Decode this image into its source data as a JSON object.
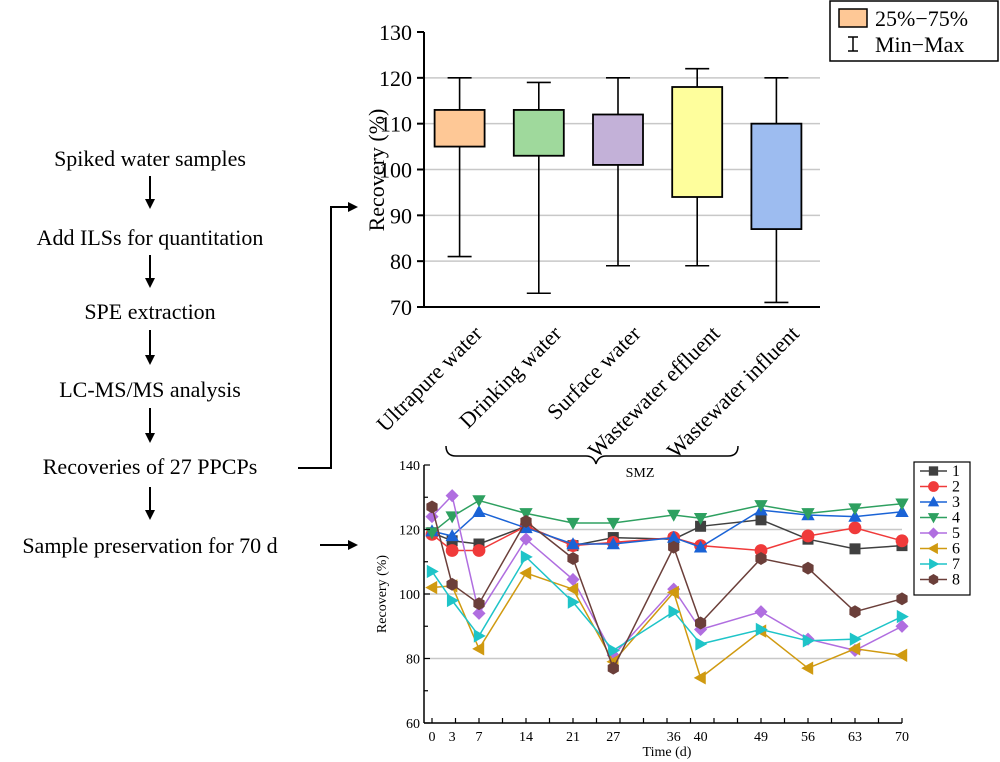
{
  "flowchart": {
    "steps": [
      "Spiked water samples",
      "Add ILSs for quantitation",
      "SPE extraction",
      "LC-MS/MS analysis",
      "Recoveries of 27 PPCPs",
      "Sample preservation for 70 d"
    ]
  },
  "chart_data": [
    {
      "type": "box",
      "title": "",
      "xlabel": "",
      "ylabel": "Recovery (%)",
      "ylim": [
        70,
        130
      ],
      "yticks": [
        "70",
        "80",
        "90",
        "100",
        "110",
        "120",
        "130"
      ],
      "grid": true,
      "legend": {
        "position": "top-right",
        "entries": [
          "25%−75%",
          "Min−Max"
        ]
      },
      "categories": [
        "Ultrapure water",
        "Drinking water",
        "Surface water",
        "Wastewater effluent",
        "Wastewater influent"
      ],
      "colors": [
        "#fec896",
        "#9fd99c",
        "#c3b1d8",
        "#fefe9c",
        "#9dbcf0"
      ],
      "boxes": [
        {
          "min": 81,
          "q1": 105,
          "q3": 113,
          "max": 120
        },
        {
          "min": 73,
          "q1": 103,
          "q3": 113,
          "max": 119
        },
        {
          "min": 79,
          "q1": 101,
          "q3": 112,
          "max": 120
        },
        {
          "min": 79,
          "q1": 94,
          "q3": 118,
          "max": 122
        },
        {
          "min": 71,
          "q1": 87,
          "q3": 110,
          "max": 120
        }
      ],
      "annotation": "SMZ"
    },
    {
      "type": "line",
      "title": "",
      "xlabel": "Time (d)",
      "ylabel": "Recovery (%)",
      "ylim": [
        60,
        140
      ],
      "yticks": [
        "60",
        "80",
        "100",
        "120",
        "140"
      ],
      "xlim": [
        0,
        70
      ],
      "x": [
        0,
        3,
        7,
        14,
        21,
        27,
        36,
        40,
        49,
        56,
        63,
        70
      ],
      "xticks": [
        "0",
        "3",
        "7",
        "14",
        "21",
        "27",
        "36",
        "40",
        "49",
        "56",
        "63",
        "70"
      ],
      "grid": true,
      "legend": {
        "position": "right"
      },
      "series": [
        {
          "name": "1",
          "color": "#404040",
          "marker": "square",
          "values": [
            119,
            116.5,
            115.5,
            121,
            115,
            117.5,
            117,
            121,
            123,
            117,
            114,
            115
          ]
        },
        {
          "name": "2",
          "color": "#f03a3a",
          "marker": "circle",
          "values": [
            118.5,
            113.5,
            113.5,
            121,
            115,
            116,
            117.5,
            115,
            113.5,
            118,
            120.5,
            116.5
          ]
        },
        {
          "name": "3",
          "color": "#1a63d6",
          "marker": "triangle-up",
          "values": [
            119.5,
            118,
            125.5,
            120.5,
            115.5,
            115.5,
            117.5,
            114.5,
            126,
            124.5,
            124,
            125.5
          ]
        },
        {
          "name": "4",
          "color": "#2ea060",
          "marker": "triangle-down",
          "values": [
            119,
            124,
            129,
            125,
            122,
            122,
            124.5,
            123.5,
            127.5,
            125,
            126.5,
            128
          ]
        },
        {
          "name": "5",
          "color": "#b06ee0",
          "marker": "diamond",
          "values": [
            124,
            130.5,
            94,
            117,
            104.5,
            81,
            101.5,
            89,
            94.5,
            86,
            82.5,
            90
          ]
        },
        {
          "name": "6",
          "color": "#d09a10",
          "marker": "triangle-left",
          "values": [
            102,
            102.5,
            83,
            106.5,
            101.5,
            79,
            100.5,
            74,
            88.5,
            77,
            83,
            81
          ]
        },
        {
          "name": "7",
          "color": "#1ec4c8",
          "marker": "triangle-right",
          "values": [
            107,
            98,
            87,
            111.5,
            97.5,
            82.5,
            94.5,
            84.5,
            89,
            85.5,
            86,
            93
          ]
        },
        {
          "name": "8",
          "color": "#6b3f3a",
          "marker": "hexagon",
          "values": [
            127,
            103,
            97,
            122.5,
            111,
            77,
            114.5,
            91,
            111,
            108,
            94.5,
            98.5
          ]
        }
      ]
    }
  ]
}
